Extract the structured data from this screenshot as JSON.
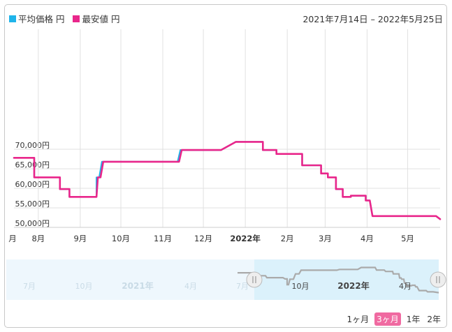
{
  "legend": [
    {
      "label": "平均価格 円",
      "color": "#1fb4ea"
    },
    {
      "label": "最安値 円",
      "color": "#e9268b"
    }
  ],
  "date_range": "2021年7月14日 – 2022年5月25日",
  "range_buttons": [
    {
      "label": "1ヶ月",
      "active": false
    },
    {
      "label": "3ヶ月",
      "active": true
    },
    {
      "label": "1年",
      "active": false
    },
    {
      "label": "2年",
      "active": false
    }
  ],
  "navigator": {
    "labels": [
      "7月",
      "10月",
      "2021年",
      "4月",
      "7月",
      "10月",
      "2022年",
      "4月"
    ],
    "bold_labels": [
      "2021年",
      "2022年"
    ],
    "window_colors": {
      "unselected": "#eef7fd",
      "selected": "#dbf1fb",
      "series": "#aaaaaa"
    }
  },
  "chart_data": {
    "type": "line",
    "title": "",
    "xlabel": "",
    "ylabel": "",
    "ylim": [
      50000,
      74000
    ],
    "y_ticks": [
      "50,000円",
      "55,000円",
      "60,000円",
      "65,000円",
      "70,000円"
    ],
    "x_tick_labels": [
      "月",
      "8月",
      "9月",
      "10月",
      "11月",
      "12月",
      "2022年",
      "2月",
      "3月",
      "4月",
      "5月"
    ],
    "series": [
      {
        "name": "平均価格",
        "color": "#1fb4ea",
        "points": [
          [
            "2021-07-14",
            67800
          ],
          [
            "2021-07-29",
            67800
          ],
          [
            "2021-07-29",
            62800
          ],
          [
            "2021-08-17",
            62800
          ],
          [
            "2021-08-17",
            59800
          ],
          [
            "2021-08-24",
            59800
          ],
          [
            "2021-08-24",
            57800
          ],
          [
            "2021-09-13",
            57800
          ],
          [
            "2021-09-13",
            62800
          ],
          [
            "2021-09-15",
            62800
          ],
          [
            "2021-09-17",
            66800
          ],
          [
            "2021-11-12",
            66800
          ],
          [
            "2021-11-14",
            69800
          ],
          [
            "2021-12-14",
            69800
          ],
          [
            "2021-12-25",
            71900
          ],
          [
            "2022-01-14",
            71900
          ],
          [
            "2022-01-14",
            69800
          ],
          [
            "2022-01-24",
            69800
          ],
          [
            "2022-01-24",
            68800
          ],
          [
            "2022-02-12",
            68800
          ],
          [
            "2022-02-12",
            65900
          ],
          [
            "2022-02-26",
            65900
          ],
          [
            "2022-02-26",
            63800
          ],
          [
            "2022-03-03",
            63800
          ],
          [
            "2022-03-03",
            62800
          ],
          [
            "2022-03-09",
            62800
          ],
          [
            "2022-03-09",
            59800
          ],
          [
            "2022-03-14",
            59800
          ],
          [
            "2022-03-14",
            57800
          ],
          [
            "2022-03-20",
            57800
          ],
          [
            "2022-03-20",
            58100
          ],
          [
            "2022-03-31",
            58100
          ],
          [
            "2022-03-31",
            56900
          ],
          [
            "2022-04-03",
            56900
          ],
          [
            "2022-04-05",
            52900
          ],
          [
            "2022-05-22",
            52900
          ],
          [
            "2022-05-25",
            52100
          ]
        ]
      },
      {
        "name": "最安値",
        "color": "#e9268b",
        "points": [
          [
            "2021-07-14",
            67800
          ],
          [
            "2021-07-29",
            67800
          ],
          [
            "2021-07-29",
            62800
          ],
          [
            "2021-08-17",
            62800
          ],
          [
            "2021-08-17",
            59800
          ],
          [
            "2021-08-24",
            59800
          ],
          [
            "2021-08-24",
            57800
          ],
          [
            "2021-09-13",
            57800
          ],
          [
            "2021-09-14",
            62800
          ],
          [
            "2021-09-16",
            62800
          ],
          [
            "2021-09-18",
            66800
          ],
          [
            "2021-11-13",
            66800
          ],
          [
            "2021-11-15",
            69800
          ],
          [
            "2021-12-14",
            69800
          ],
          [
            "2021-12-25",
            71900
          ],
          [
            "2022-01-14",
            71900
          ],
          [
            "2022-01-14",
            69800
          ],
          [
            "2022-01-24",
            69800
          ],
          [
            "2022-01-24",
            68800
          ],
          [
            "2022-02-12",
            68800
          ],
          [
            "2022-02-12",
            65900
          ],
          [
            "2022-02-26",
            65900
          ],
          [
            "2022-02-26",
            63800
          ],
          [
            "2022-03-03",
            63800
          ],
          [
            "2022-03-03",
            62800
          ],
          [
            "2022-03-09",
            62800
          ],
          [
            "2022-03-09",
            59800
          ],
          [
            "2022-03-14",
            59800
          ],
          [
            "2022-03-14",
            57800
          ],
          [
            "2022-03-20",
            57800
          ],
          [
            "2022-03-20",
            58100
          ],
          [
            "2022-03-31",
            58100
          ],
          [
            "2022-03-31",
            56900
          ],
          [
            "2022-04-03",
            56900
          ],
          [
            "2022-04-05",
            52900
          ],
          [
            "2022-05-22",
            52900
          ],
          [
            "2022-05-25",
            52100
          ]
        ]
      }
    ],
    "grid": true,
    "legend_position": "top-left"
  }
}
